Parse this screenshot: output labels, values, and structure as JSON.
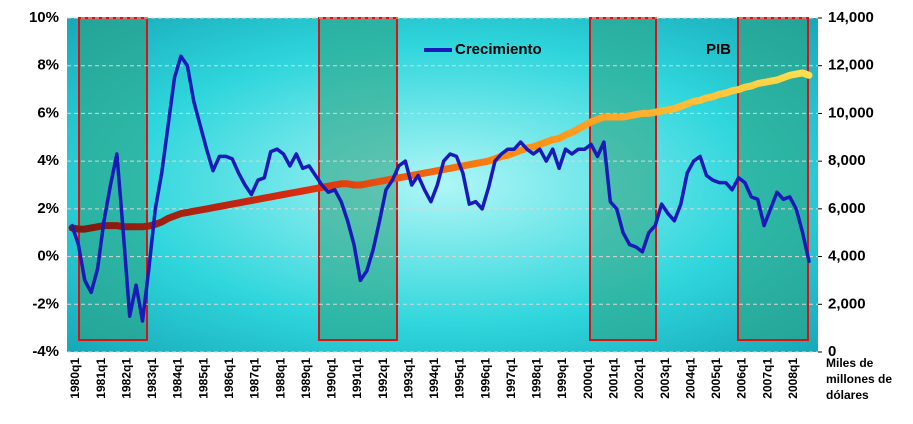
{
  "chart_data": {
    "type": "line",
    "categories": [
      "1980q1",
      null,
      null,
      null,
      "1981q1",
      null,
      null,
      null,
      "1982q1",
      null,
      null,
      null,
      "1983q1",
      null,
      null,
      null,
      "1984q1",
      null,
      null,
      null,
      "1985q1",
      null,
      null,
      null,
      "1986q1",
      null,
      null,
      null,
      "1987q1",
      null,
      null,
      null,
      "1988q1",
      null,
      null,
      null,
      "1989q1",
      null,
      null,
      null,
      "1990q1",
      null,
      null,
      null,
      "1991q1",
      null,
      null,
      null,
      "1992q1",
      null,
      null,
      null,
      "1993q1",
      null,
      null,
      null,
      "1994q1",
      null,
      null,
      null,
      "1995q1",
      null,
      null,
      null,
      "1996q1",
      null,
      null,
      null,
      "1997q1",
      null,
      null,
      null,
      "1998q1",
      null,
      null,
      null,
      "1999q1",
      null,
      null,
      null,
      "2000q1",
      null,
      null,
      null,
      "2001q1",
      null,
      null,
      null,
      "2002q1",
      null,
      null,
      null,
      "2003q1",
      null,
      null,
      null,
      "2004q1",
      null,
      null,
      null,
      "2005q1",
      null,
      null,
      null,
      "2006q1",
      null,
      null,
      null,
      "2007q1",
      null,
      null,
      null,
      "2008q1",
      null,
      null,
      null
    ],
    "series": [
      {
        "name": "Crecimiento",
        "color": "#1a1ab8",
        "values": [
          1.3,
          0.5,
          -1.0,
          -1.5,
          -0.5,
          1.5,
          3.0,
          4.3,
          1.0,
          -2.5,
          -1.2,
          -2.7,
          -0.5,
          2.0,
          3.5,
          5.5,
          7.5,
          8.4,
          8.0,
          6.5,
          5.5,
          4.5,
          3.6,
          4.2,
          4.2,
          4.1,
          3.5,
          3.0,
          2.6,
          3.2,
          3.3,
          4.4,
          4.5,
          4.3,
          3.8,
          4.3,
          3.7,
          3.8,
          3.4,
          3.0,
          2.7,
          2.8,
          2.3,
          1.5,
          0.5,
          -1.0,
          -0.6,
          0.3,
          1.5,
          2.8,
          3.2,
          3.8,
          4.0,
          3.0,
          3.4,
          2.8,
          2.3,
          3.0,
          4.0,
          4.3,
          4.2,
          3.5,
          2.2,
          2.3,
          2.0,
          2.9,
          4.0,
          4.3,
          4.5,
          4.5,
          4.8,
          4.5,
          4.3,
          4.5,
          4.0,
          4.5,
          3.7,
          4.5,
          4.3,
          4.5,
          4.5,
          4.7,
          4.2,
          4.8,
          2.3,
          2.0,
          1.0,
          0.5,
          0.4,
          0.2,
          1.0,
          1.3,
          2.2,
          1.8,
          1.5,
          2.2,
          3.5,
          4.0,
          4.2,
          3.4,
          3.2,
          3.1,
          3.1,
          2.8,
          3.3,
          3.1,
          2.5,
          2.4,
          1.3,
          2.0,
          2.7,
          2.4,
          2.5,
          2.0,
          1.0,
          -0.2
        ]
      },
      {
        "name": "PIB",
        "color": "#ff9900",
        "axis": "y2",
        "values": [
          5200,
          5150,
          5150,
          5200,
          5250,
          5300,
          5300,
          5300,
          5250,
          5250,
          5250,
          5250,
          5280,
          5350,
          5450,
          5600,
          5700,
          5800,
          5850,
          5900,
          5950,
          6000,
          6050,
          6100,
          6150,
          6200,
          6250,
          6300,
          6350,
          6400,
          6450,
          6500,
          6550,
          6600,
          6650,
          6700,
          6750,
          6800,
          6850,
          6900,
          6950,
          7000,
          7050,
          7050,
          7000,
          7000,
          7050,
          7100,
          7150,
          7200,
          7250,
          7300,
          7350,
          7400,
          7450,
          7500,
          7550,
          7600,
          7650,
          7700,
          7750,
          7800,
          7850,
          7900,
          7950,
          8000,
          8100,
          8200,
          8250,
          8350,
          8450,
          8550,
          8600,
          8700,
          8800,
          8900,
          8950,
          9100,
          9200,
          9350,
          9500,
          9650,
          9750,
          9850,
          9850,
          9850,
          9850,
          9900,
          9950,
          10000,
          10000,
          10050,
          10100,
          10150,
          10200,
          10300,
          10400,
          10500,
          10550,
          10650,
          10700,
          10800,
          10850,
          10950,
          11000,
          11100,
          11150,
          11250,
          11300,
          11350,
          11400,
          11500,
          11600,
          11650,
          11700,
          11600
        ]
      }
    ],
    "ylim": [
      -4,
      10
    ],
    "yticks": [
      {
        "value": -4,
        "label": "-4%"
      },
      {
        "value": -2,
        "label": "-2%"
      },
      {
        "value": 0,
        "label": "0%"
      },
      {
        "value": 2,
        "label": "2%"
      },
      {
        "value": 4,
        "label": "4%"
      },
      {
        "value": 6,
        "label": "6%"
      },
      {
        "value": 8,
        "label": "8%"
      },
      {
        "value": 10,
        "label": "10%"
      }
    ],
    "y2lim": [
      0,
      14000
    ],
    "y2ticks": [
      0,
      {
        "value": 2000,
        "label": "2,000"
      },
      {
        "value": 4000,
        "label": "4,000"
      },
      {
        "value": 6000,
        "label": "6,000"
      },
      {
        "value": 8000,
        "label": "8,000"
      },
      {
        "value": 10000,
        "label": "10,000"
      },
      {
        "value": 12000,
        "label": "12,000"
      },
      {
        "value": 14000,
        "label": "14,000"
      }
    ],
    "y2_label": "Miles de millones de dólares",
    "grid": true
  }
}
